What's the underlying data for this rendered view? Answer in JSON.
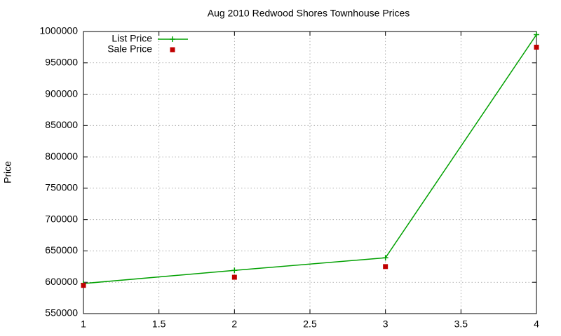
{
  "chart_data": {
    "type": "line",
    "title": "Aug 2010 Redwood Shores Townhouse Prices",
    "y_label": "Price",
    "x": [
      1,
      2,
      3,
      4
    ],
    "series": [
      {
        "name": "List Price",
        "color": "#00a000",
        "style": "linespoints",
        "marker": "plus",
        "values": [
          598000,
          619000,
          639000,
          995000
        ]
      },
      {
        "name": "Sale Price",
        "color": "#c00000",
        "style": "points",
        "marker": "square",
        "values": [
          595000,
          608000,
          625000,
          975000
        ]
      }
    ],
    "xlim": [
      1,
      4
    ],
    "xticks": [
      1,
      1.5,
      2,
      2.5,
      3,
      3.5,
      4
    ],
    "ylim": [
      550000,
      1000000
    ],
    "yticks": [
      550000,
      600000,
      650000,
      700000,
      750000,
      800000,
      850000,
      900000,
      950000,
      1000000
    ],
    "grid": true,
    "legend": "top-left"
  }
}
